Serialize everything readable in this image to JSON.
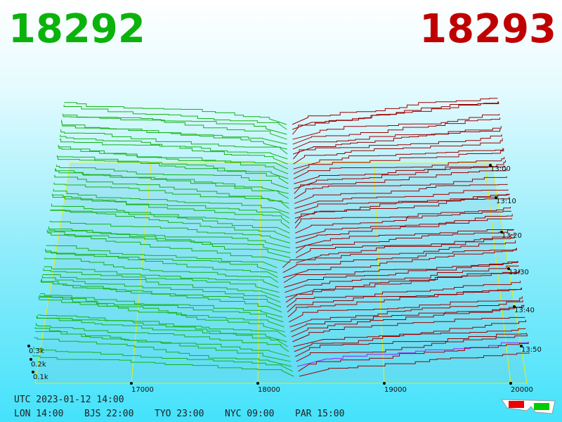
{
  "header": {
    "bid": "18292",
    "ask": "18293"
  },
  "price_axis": [
    "17000",
    "18000",
    "19000",
    "20000"
  ],
  "time_axis": [
    "13:00",
    "13:10",
    "13:20",
    "13:30",
    "13:40",
    "13:50"
  ],
  "volume_axis": [
    "0.3k",
    "0.2k",
    "0.1k"
  ],
  "footer": {
    "utc": "UTC 2023-01-12 14:00",
    "clocks": [
      "LON 14:00",
      "BJS 22:00",
      "TYO 23:00",
      "NYC 09:00",
      "PAR 15:00"
    ]
  }
}
